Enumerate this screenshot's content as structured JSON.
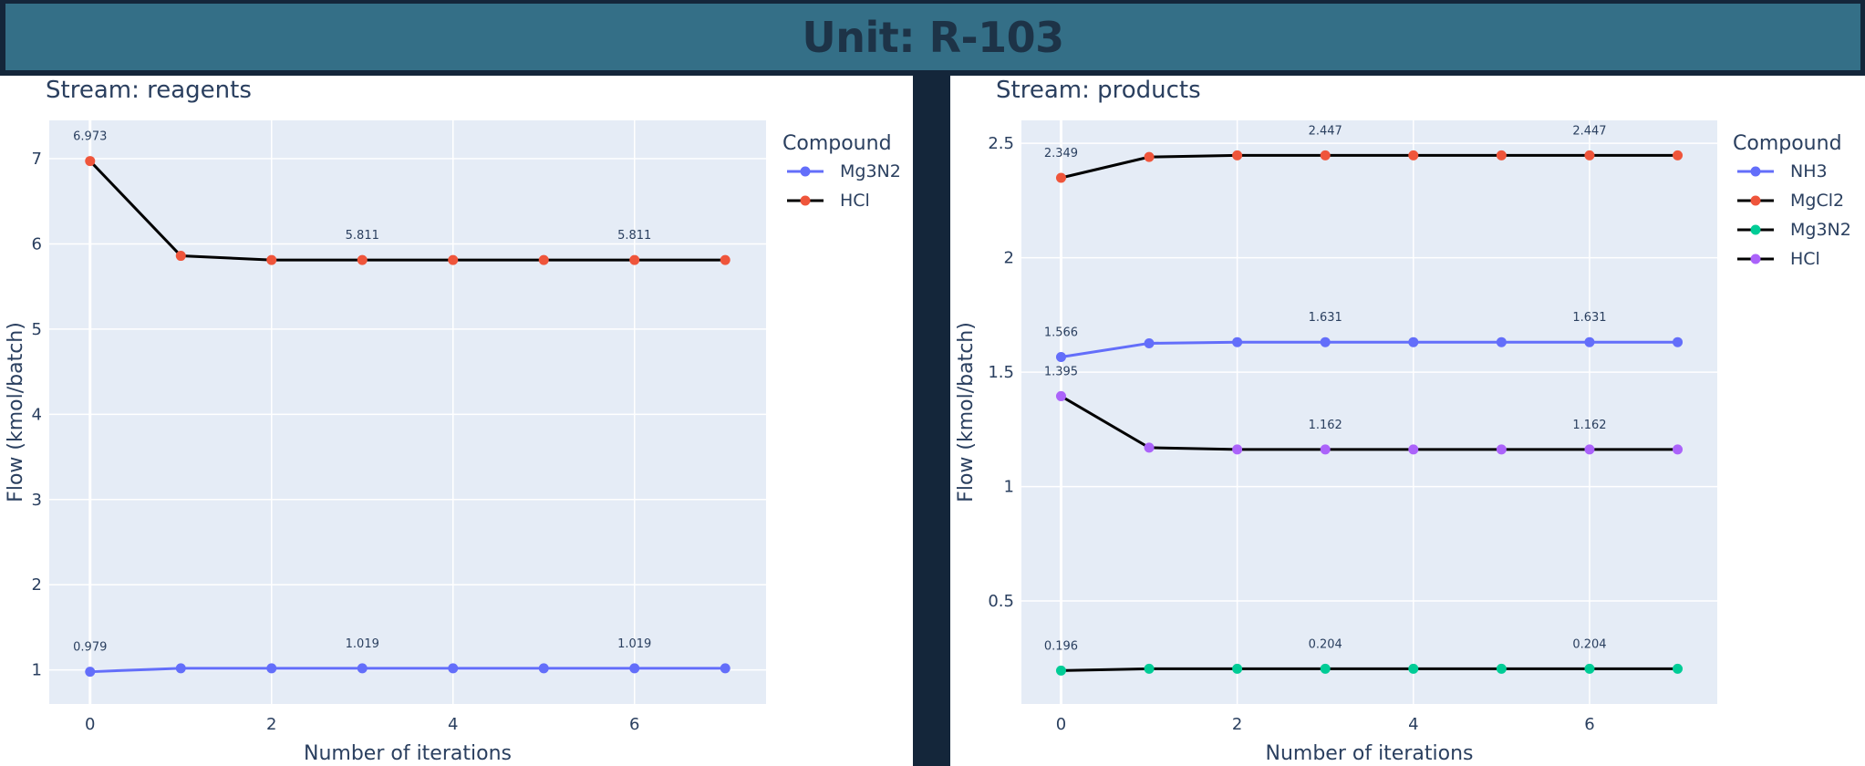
{
  "header": {
    "title": "Unit: R-103"
  },
  "chart_data": [
    {
      "type": "line",
      "title": "Stream: reagents",
      "xlabel": "Number of iterations",
      "ylabel": "Flow (kmol/batch)",
      "xlim": [
        -0.45,
        7.45
      ],
      "ylim": [
        0.6,
        7.45
      ],
      "x_ticks": [
        0,
        2,
        4,
        6
      ],
      "y_ticks": [
        1,
        2,
        3,
        4,
        5,
        6,
        7
      ],
      "legend_title": "Compound",
      "legend_position": "top-right outside",
      "grid": true,
      "x": [
        0,
        1,
        2,
        3,
        4,
        5,
        6,
        7
      ],
      "series": [
        {
          "name": "Mg3N2",
          "line_color": "#636efa",
          "marker_color": "#636efa",
          "values": [
            0.979,
            1.019,
            1.019,
            1.019,
            1.019,
            1.019,
            1.019,
            1.019
          ]
        },
        {
          "name": "HCl",
          "line_color": "#000000",
          "marker_color": "#ef553b",
          "values": [
            6.973,
            5.86,
            5.811,
            5.811,
            5.811,
            5.811,
            5.811,
            5.811
          ]
        }
      ],
      "annotations": [
        {
          "series": 0,
          "x": 0,
          "text": "0.979"
        },
        {
          "series": 0,
          "x": 3,
          "text": "1.019"
        },
        {
          "series": 0,
          "x": 6,
          "text": "1.019"
        },
        {
          "series": 1,
          "x": 0,
          "text": "6.973"
        },
        {
          "series": 1,
          "x": 3,
          "text": "5.811"
        },
        {
          "series": 1,
          "x": 6,
          "text": "5.811"
        }
      ]
    },
    {
      "type": "line",
      "title": "Stream: products",
      "xlabel": "Number of iterations",
      "ylabel": "Flow (kmol/batch)",
      "xlim": [
        -0.45,
        7.45
      ],
      "ylim": [
        0.05,
        2.6
      ],
      "x_ticks": [
        0,
        2,
        4,
        6
      ],
      "y_ticks": [
        0.5,
        1,
        1.5,
        2,
        2.5
      ],
      "legend_title": "Compound",
      "legend_position": "top-right outside",
      "grid": true,
      "x": [
        0,
        1,
        2,
        3,
        4,
        5,
        6,
        7
      ],
      "series": [
        {
          "name": "NH3",
          "line_color": "#636efa",
          "marker_color": "#636efa",
          "values": [
            1.566,
            1.626,
            1.631,
            1.631,
            1.631,
            1.631,
            1.631,
            1.631
          ]
        },
        {
          "name": "MgCl2",
          "line_color": "#000000",
          "marker_color": "#ef553b",
          "values": [
            2.349,
            2.44,
            2.447,
            2.447,
            2.447,
            2.447,
            2.447,
            2.447
          ]
        },
        {
          "name": "Mg3N2",
          "line_color": "#000000",
          "marker_color": "#00cc96",
          "values": [
            0.196,
            0.204,
            0.204,
            0.204,
            0.204,
            0.204,
            0.204,
            0.204
          ]
        },
        {
          "name": "HCl",
          "line_color": "#000000",
          "marker_color": "#ab63fa",
          "values": [
            1.395,
            1.17,
            1.162,
            1.162,
            1.162,
            1.162,
            1.162,
            1.162
          ]
        }
      ],
      "annotations": [
        {
          "series": 0,
          "x": 0,
          "text": "1.566"
        },
        {
          "series": 0,
          "x": 3,
          "text": "1.631"
        },
        {
          "series": 0,
          "x": 6,
          "text": "1.631"
        },
        {
          "series": 1,
          "x": 0,
          "text": "2.349"
        },
        {
          "series": 1,
          "x": 3,
          "text": "2.447"
        },
        {
          "series": 1,
          "x": 6,
          "text": "2.447"
        },
        {
          "series": 2,
          "x": 0,
          "text": "0.196"
        },
        {
          "series": 2,
          "x": 3,
          "text": "0.204"
        },
        {
          "series": 2,
          "x": 6,
          "text": "0.204"
        },
        {
          "series": 3,
          "x": 0,
          "text": "1.395"
        },
        {
          "series": 3,
          "x": 3,
          "text": "1.162"
        },
        {
          "series": 3,
          "x": 6,
          "text": "1.162"
        }
      ]
    }
  ]
}
